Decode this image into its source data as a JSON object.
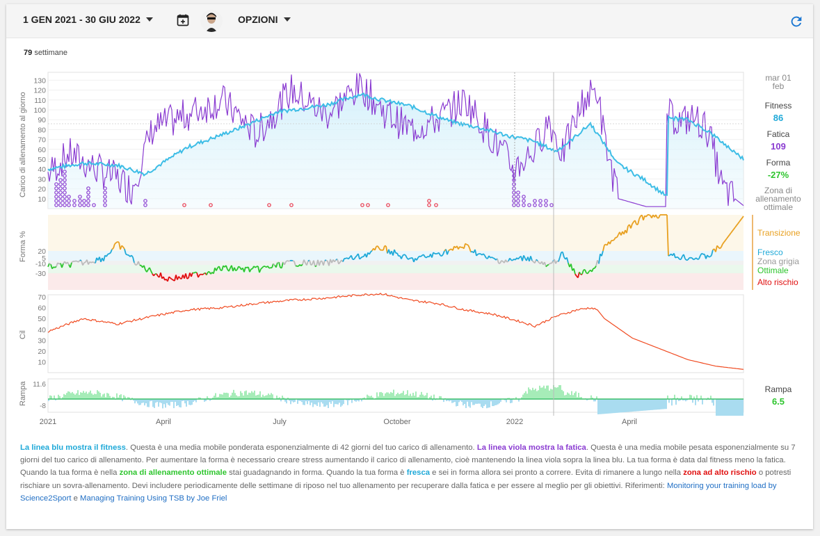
{
  "toolbar": {
    "date_range": "1 GEN 2021 - 30 GIU 2022",
    "options_label": "OPZIONI",
    "icons": [
      "calendar-plus-icon",
      "avatar",
      "refresh-icon"
    ],
    "accent": "#1976d2"
  },
  "summary": {
    "weeks_count": "79",
    "weeks_label": "settimane"
  },
  "side_panel": {
    "date_line1": "mar 01",
    "date_line2": "feb",
    "fitness_label": "Fitness",
    "fitness_value": "86",
    "fatigue_label": "Fatica",
    "fatigue_value": "109",
    "form_label": "Forma",
    "form_value": "-27%",
    "zone_label_1": "Zona di",
    "zone_label_2": "allenamento",
    "zone_label_3": "ottimale",
    "zones": {
      "transition": "Transizione",
      "fresh": "Fresco",
      "grey": "Zona grigia",
      "optimal": "Ottimale",
      "high_risk": "Alto rischio"
    },
    "ramp_label": "Rampa",
    "ramp_value": "6.5"
  },
  "chart_data": [
    {
      "type": "line",
      "ylabel": "Carico di allenamento al giorno",
      "yticks": [
        "10",
        "20",
        "30",
        "40",
        "50",
        "60",
        "70",
        "80",
        "90",
        "100",
        "110",
        "120",
        "130"
      ],
      "ylim": [
        0,
        138
      ],
      "series": [
        {
          "name": "Fitness",
          "color": "#3dbde6",
          "x": [
            0,
            0.05,
            0.1,
            0.14,
            0.2,
            0.27,
            0.33,
            0.4,
            0.45,
            0.48,
            0.52,
            0.58,
            0.62,
            0.66,
            0.7,
            0.73,
            0.75,
            0.78,
            0.82,
            0.86,
            0.89,
            0.891,
            0.92,
            0.95,
            1.0
          ],
          "values": [
            40,
            46,
            44,
            35,
            62,
            80,
            98,
            105,
            116,
            110,
            104,
            88,
            82,
            74,
            68,
            58,
            68,
            86,
            45,
            28,
            12,
            92,
            90,
            78,
            50
          ]
        },
        {
          "name": "Fatica",
          "color": "#8a3bd1",
          "x": [
            0,
            0.03,
            0.07,
            0.1,
            0.12,
            0.15,
            0.2,
            0.25,
            0.3,
            0.35,
            0.4,
            0.45,
            0.48,
            0.52,
            0.56,
            0.6,
            0.64,
            0.67,
            0.7,
            0.72,
            0.74,
            0.77,
            0.79,
            0.8,
            0.82,
            0.86,
            0.889,
            0.89,
            0.91,
            0.93,
            0.95,
            0.97,
            1.0
          ],
          "values": [
            35,
            55,
            40,
            30,
            20,
            80,
            95,
            110,
            75,
            120,
            95,
            125,
            100,
            80,
            90,
            110,
            70,
            40,
            60,
            90,
            55,
            110,
            120,
            70,
            10,
            2,
            2,
            95,
            88,
            92,
            78,
            20,
            3
          ]
        }
      ]
    },
    {
      "type": "line",
      "ylabel": "Forma %",
      "yticks": [
        "20",
        "5",
        "-10",
        "-30"
      ],
      "zones": [
        "Transizione",
        "Fresco",
        "Zona grigia",
        "Ottimale",
        "Alto rischio"
      ]
    },
    {
      "type": "line",
      "ylabel": "Cil",
      "yticks": [
        "10",
        "20",
        "30",
        "40",
        "50",
        "60",
        "70"
      ],
      "ylim": [
        0,
        72
      ],
      "series": [
        {
          "name": "",
          "color": "#f04a20",
          "x": [
            0,
            0.05,
            0.1,
            0.15,
            0.2,
            0.25,
            0.3,
            0.35,
            0.4,
            0.45,
            0.48,
            0.52,
            0.56,
            0.6,
            0.64,
            0.68,
            0.7,
            0.73,
            0.76,
            0.78,
            0.79,
            0.8,
            0.84,
            0.88,
            0.92,
            0.96,
            1.0
          ],
          "values": [
            38,
            50,
            45,
            52,
            58,
            60,
            64,
            67,
            69,
            72,
            73,
            67,
            64,
            58,
            54,
            47,
            43,
            52,
            58,
            60,
            58,
            50,
            32,
            22,
            12,
            6,
            3
          ]
        }
      ]
    },
    {
      "type": "area",
      "ylabel": "Rampa",
      "yticks": [
        "11.6",
        "-8"
      ],
      "xticks": [
        "2021",
        "April",
        "July",
        "October",
        "2022",
        "April"
      ]
    }
  ],
  "description": {
    "p1_blue": "La linea blu mostra il fitness",
    "p2": ". Questa è una media mobile ponderata esponenzialmente di 42 giorni del tuo carico di allenamento. ",
    "p3_violet": "La linea viola mostra la fatica",
    "p4": ". Questa è una media mobile pesata esponenzialmente su 7 giorni del tuo carico di allenamento. Per aumentare la forma è necessario creare stress aumentando il carico di allenamento, cioè mantenendo la linea viola sopra la linea blu. La tua forma è data dal fitness meno la fatica. Quando la tua forma è nella ",
    "p5_green": "zona di allenamento ottimale",
    "p6": " stai guadagnando in forma. Quando la tua forma è ",
    "p7_cyan": "fresca",
    "p8": " e sei in forma allora sei pronto a correre. Evita di rimanere a lungo nella ",
    "p9_red": "zona ad alto rischio",
    "p10": " o potresti rischiare un sovra-allenamento. Devi includere periodicamente delle settimane di riposo nel tuo allenamento per recuperare dalla fatica e per essere al meglio per gli obiettivi. Riferimenti: ",
    "link1": "Monitoring your training load by Science2Sport",
    "p11": " e ",
    "link2": "Managing Training Using TSB by Joe Friel"
  }
}
